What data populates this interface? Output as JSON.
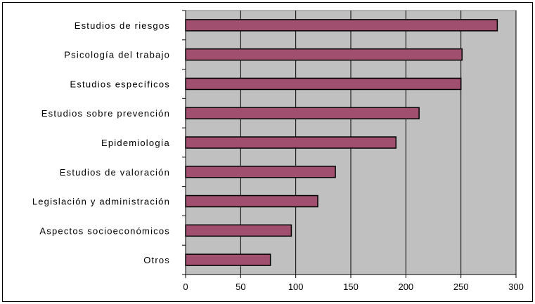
{
  "chart_data": {
    "type": "bar",
    "orientation": "horizontal",
    "title": "",
    "xlabel": "",
    "ylabel": "",
    "categories": [
      "Estudios de riesgos",
      "Psicología del trabajo",
      "Estudios específicos",
      "Estudios sobre prevención",
      "Epidemiología",
      "Estudios de valoración",
      "Legislación y administración",
      "Aspectos socioeconómicos",
      "Otros"
    ],
    "values": [
      283,
      251,
      250,
      212,
      191,
      136,
      120,
      96,
      77
    ],
    "xlim": [
      0,
      300
    ],
    "xticks": [
      "0",
      "50",
      "100",
      "150",
      "200",
      "250",
      "300"
    ],
    "grid": true,
    "legend": "none",
    "colors": {
      "bar_fill": "#a0506e",
      "bar_stroke": "#000000",
      "plot_background": "#c0c0c0",
      "gridline": "#000000"
    }
  }
}
